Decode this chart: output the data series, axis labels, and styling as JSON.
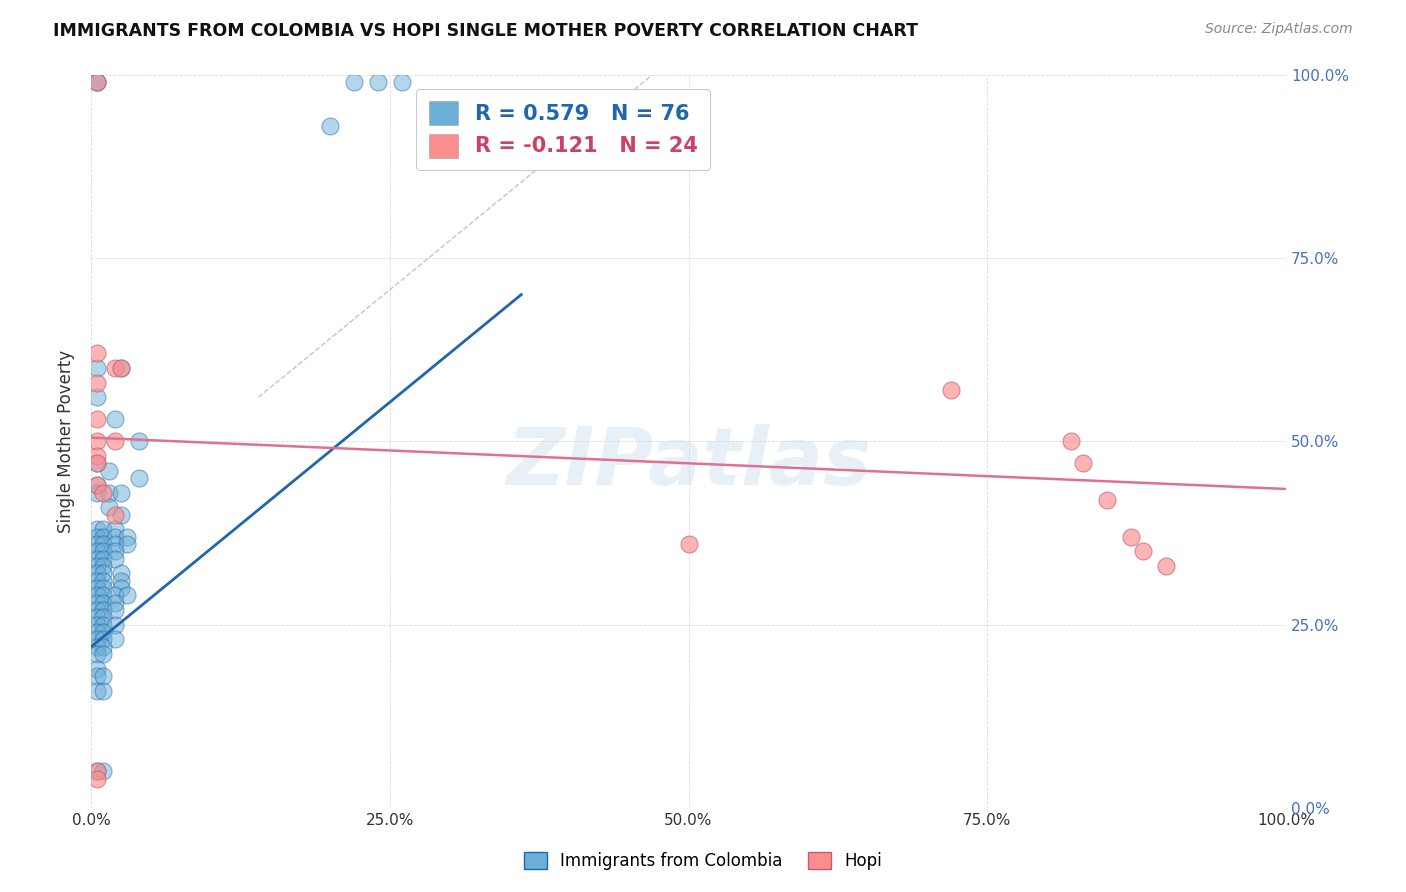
{
  "title": "IMMIGRANTS FROM COLOMBIA VS HOPI SINGLE MOTHER POVERTY CORRELATION CHART",
  "source": "Source: ZipAtlas.com",
  "xlabel": "",
  "ylabel": "Single Mother Poverty",
  "xlim": [
    0,
    1.0
  ],
  "ylim": [
    0,
    1.0
  ],
  "xtick_labels": [
    "0.0%",
    "25.0%",
    "50.0%",
    "75.0%",
    "100.0%"
  ],
  "xtick_vals": [
    0.0,
    0.25,
    0.5,
    0.75,
    1.0
  ],
  "ytick_labels_right": [
    "100.0%",
    "75.0%",
    "50.0%",
    "25.0%",
    "0.0%"
  ],
  "ytick_vals": [
    1.0,
    0.75,
    0.5,
    0.25,
    0.0
  ],
  "color_blue": "#6baed6",
  "color_pink": "#fc8d8d",
  "color_blue_line": "#2166ac",
  "color_pink_line": "#e07090",
  "color_dashed_line": "#a8bfd8",
  "colombia_scatter": [
    [
      0.005,
      0.99
    ],
    [
      0.005,
      0.99
    ],
    [
      0.22,
      0.99
    ],
    [
      0.24,
      0.99
    ],
    [
      0.26,
      0.99
    ],
    [
      0.2,
      0.93
    ],
    [
      0.005,
      0.6
    ],
    [
      0.005,
      0.56
    ],
    [
      0.025,
      0.6
    ],
    [
      0.02,
      0.53
    ],
    [
      0.04,
      0.5
    ],
    [
      0.005,
      0.47
    ],
    [
      0.005,
      0.44
    ],
    [
      0.005,
      0.43
    ],
    [
      0.015,
      0.46
    ],
    [
      0.04,
      0.45
    ],
    [
      0.015,
      0.43
    ],
    [
      0.025,
      0.43
    ],
    [
      0.015,
      0.41
    ],
    [
      0.025,
      0.4
    ],
    [
      0.005,
      0.38
    ],
    [
      0.01,
      0.38
    ],
    [
      0.02,
      0.38
    ],
    [
      0.005,
      0.37
    ],
    [
      0.01,
      0.37
    ],
    [
      0.02,
      0.37
    ],
    [
      0.03,
      0.37
    ],
    [
      0.005,
      0.36
    ],
    [
      0.01,
      0.36
    ],
    [
      0.02,
      0.36
    ],
    [
      0.03,
      0.36
    ],
    [
      0.005,
      0.35
    ],
    [
      0.01,
      0.35
    ],
    [
      0.02,
      0.35
    ],
    [
      0.005,
      0.34
    ],
    [
      0.01,
      0.34
    ],
    [
      0.02,
      0.34
    ],
    [
      0.005,
      0.33
    ],
    [
      0.01,
      0.33
    ],
    [
      0.005,
      0.32
    ],
    [
      0.01,
      0.32
    ],
    [
      0.025,
      0.32
    ],
    [
      0.005,
      0.31
    ],
    [
      0.01,
      0.31
    ],
    [
      0.025,
      0.31
    ],
    [
      0.005,
      0.3
    ],
    [
      0.01,
      0.3
    ],
    [
      0.025,
      0.3
    ],
    [
      0.005,
      0.29
    ],
    [
      0.01,
      0.29
    ],
    [
      0.02,
      0.29
    ],
    [
      0.03,
      0.29
    ],
    [
      0.005,
      0.28
    ],
    [
      0.01,
      0.28
    ],
    [
      0.02,
      0.28
    ],
    [
      0.005,
      0.27
    ],
    [
      0.01,
      0.27
    ],
    [
      0.02,
      0.27
    ],
    [
      0.005,
      0.26
    ],
    [
      0.01,
      0.26
    ],
    [
      0.005,
      0.25
    ],
    [
      0.01,
      0.25
    ],
    [
      0.02,
      0.25
    ],
    [
      0.005,
      0.24
    ],
    [
      0.01,
      0.24
    ],
    [
      0.005,
      0.23
    ],
    [
      0.01,
      0.23
    ],
    [
      0.02,
      0.23
    ],
    [
      0.005,
      0.22
    ],
    [
      0.01,
      0.22
    ],
    [
      0.005,
      0.21
    ],
    [
      0.01,
      0.21
    ],
    [
      0.005,
      0.19
    ],
    [
      0.005,
      0.18
    ],
    [
      0.01,
      0.18
    ],
    [
      0.005,
      0.16
    ],
    [
      0.01,
      0.16
    ],
    [
      0.005,
      0.05
    ],
    [
      0.01,
      0.05
    ]
  ],
  "hopi_scatter": [
    [
      0.005,
      0.99
    ],
    [
      0.005,
      0.62
    ],
    [
      0.005,
      0.58
    ],
    [
      0.02,
      0.6
    ],
    [
      0.025,
      0.6
    ],
    [
      0.005,
      0.53
    ],
    [
      0.005,
      0.5
    ],
    [
      0.02,
      0.5
    ],
    [
      0.005,
      0.48
    ],
    [
      0.005,
      0.47
    ],
    [
      0.005,
      0.44
    ],
    [
      0.01,
      0.43
    ],
    [
      0.02,
      0.4
    ],
    [
      0.5,
      0.36
    ],
    [
      0.72,
      0.57
    ],
    [
      0.82,
      0.5
    ],
    [
      0.83,
      0.47
    ],
    [
      0.85,
      0.42
    ],
    [
      0.87,
      0.37
    ],
    [
      0.88,
      0.35
    ],
    [
      0.9,
      0.33
    ],
    [
      0.005,
      0.05
    ],
    [
      0.005,
      0.04
    ]
  ],
  "blue_line_x": [
    0.0,
    0.36
  ],
  "blue_line_y": [
    0.22,
    0.7
  ],
  "pink_line_x": [
    0.0,
    1.0
  ],
  "pink_line_y": [
    0.505,
    0.435
  ],
  "dashed_line_x": [
    0.14,
    0.5
  ],
  "dashed_line_y": [
    0.56,
    1.04
  ]
}
